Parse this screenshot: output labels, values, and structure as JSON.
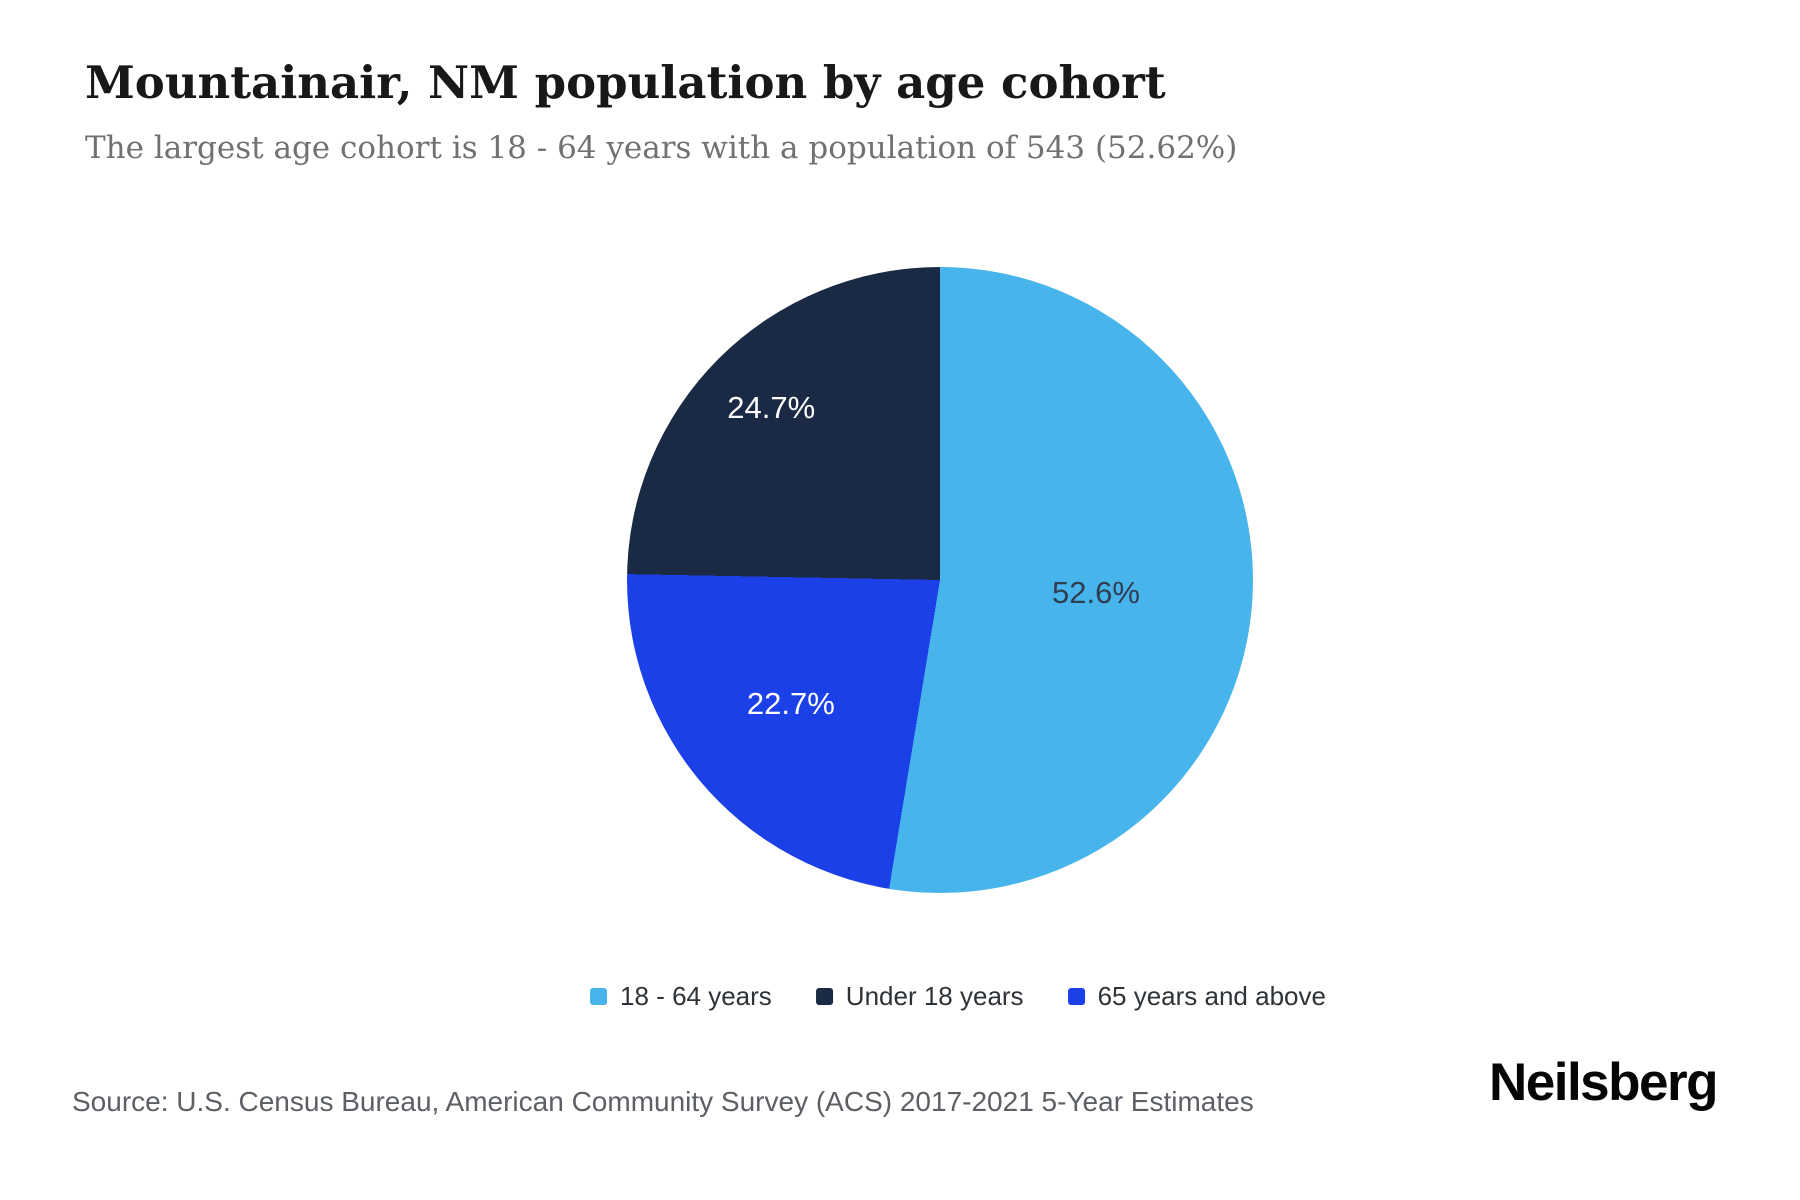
{
  "page": {
    "background": "#ffffff"
  },
  "header": {
    "title": "Mountainair, NM population by age cohort",
    "subtitle": "The largest age cohort is 18 - 64 years with a population of 543 (52.62%)"
  },
  "chart_data": {
    "type": "pie",
    "title": "Mountainair, NM population by age cohort",
    "subtitle": "The largest age cohort is 18 - 64 years with a population of 543 (52.62%)",
    "unit": "percent of total population",
    "largest_cohort": {
      "label": "18 - 64 years",
      "population": 543,
      "pct": 52.62
    },
    "start_angle_deg": 0,
    "direction": "clockwise",
    "slices": [
      {
        "label": "18 - 64 years",
        "value": 52.6,
        "display": "52.6%",
        "color": "#48b4ec",
        "text_color": "#2f3e50",
        "label_radius_frac": 0.5
      },
      {
        "label": "65 years and above",
        "value": 22.7,
        "display": "22.7%",
        "color": "#1c40e8",
        "text_color": "#ffffff",
        "label_radius_frac": 0.62
      },
      {
        "label": "Under 18 years",
        "value": 24.7,
        "display": "24.7%",
        "color": "#1b2a44",
        "text_color": "#ffffff",
        "label_radius_frac": 0.77
      }
    ],
    "legend": {
      "position": "bottom-center",
      "items": [
        {
          "label": "18 - 64 years",
          "color": "#48b4ec"
        },
        {
          "label": "Under 18 years",
          "color": "#1b2a44"
        },
        {
          "label": "65 years and above",
          "color": "#1c40e8"
        }
      ]
    }
  },
  "footer": {
    "source": "Source: U.S. Census Bureau, American Community Survey (ACS) 2017-2021 5-Year Estimates",
    "brand": "Neilsberg"
  }
}
